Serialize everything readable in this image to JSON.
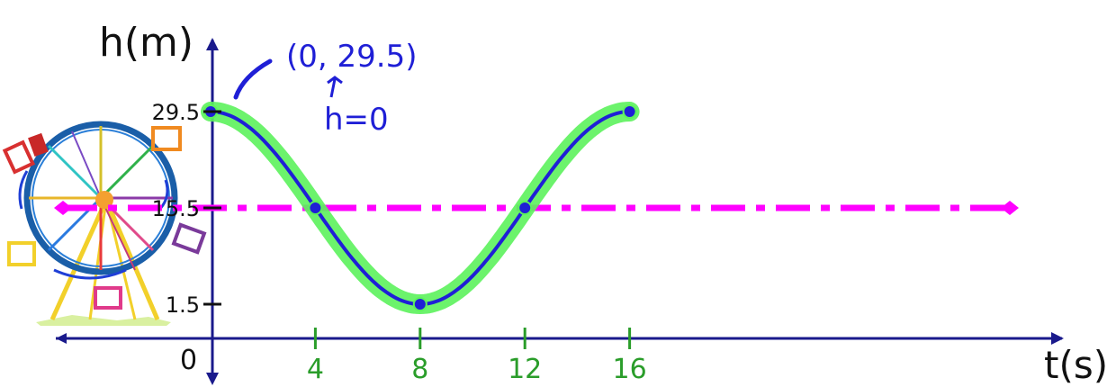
{
  "chart_data": {
    "type": "line",
    "xlabel": "t(s)",
    "ylabel": "h(m)",
    "x_ticks": [
      "4",
      "8",
      "12",
      "16"
    ],
    "y_ticks": [
      "29.5",
      "15.5",
      "1.5"
    ],
    "origin_label": "0",
    "xlim": [
      0,
      16
    ],
    "ylim": [
      1.5,
      29.5
    ],
    "midline": {
      "y": 15.5,
      "style": "dash-dot",
      "color": "#ff00ff"
    },
    "series": [
      {
        "color": "#1f1fd6",
        "highlight_color": "#5cf25c",
        "points": [
          {
            "x": 0,
            "y": 29.5
          },
          {
            "x": 4,
            "y": 15.5
          },
          {
            "x": 8,
            "y": 1.5
          },
          {
            "x": 12,
            "y": 15.5
          },
          {
            "x": 16,
            "y": 29.5
          }
        ]
      }
    ],
    "annotations": [
      {
        "text": "(0, 29.5)"
      },
      {
        "text": "h=0"
      }
    ]
  },
  "colors": {
    "axis": "#1a1a8c",
    "curve": "#1f1fd6",
    "highlight": "#5cf25c",
    "midline": "#ff00ff",
    "tick_label_x": "#2a9d2a",
    "ink": "#111111"
  }
}
